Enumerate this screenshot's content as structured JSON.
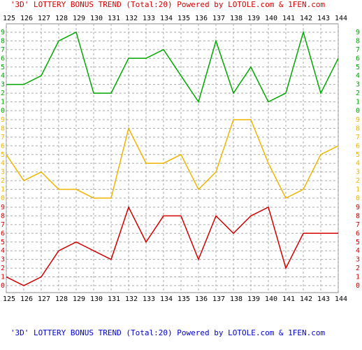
{
  "chart_data": {
    "type": "line",
    "title": "'3D' LOTTERY BONUS TREND (Total:20)  Powered by LOTOLE.com & 1FEN.com",
    "categories": [
      "125",
      "126",
      "127",
      "128",
      "129",
      "130",
      "131",
      "132",
      "133",
      "134",
      "135",
      "136",
      "137",
      "138",
      "139",
      "140",
      "141",
      "142",
      "143",
      "144"
    ],
    "ylim": [
      0,
      9
    ],
    "yticks": [
      0,
      1,
      2,
      3,
      4,
      5,
      6,
      7,
      8,
      9
    ],
    "grid": true,
    "series": [
      {
        "color": "#00a800",
        "values": [
          3,
          3,
          4,
          8,
          9,
          2,
          2,
          6,
          6,
          7,
          4,
          1,
          8,
          2,
          5,
          1,
          2,
          9,
          2,
          6
        ]
      },
      {
        "color": "#f0b400",
        "values": [
          5,
          2,
          3,
          1,
          1,
          0,
          0,
          8,
          4,
          4,
          5,
          1,
          3,
          9,
          9,
          4,
          0,
          1,
          5,
          6
        ]
      },
      {
        "color": "#d40000",
        "values": [
          1,
          0,
          1,
          4,
          5,
          4,
          3,
          9,
          5,
          8,
          8,
          3,
          8,
          6,
          8,
          9,
          2,
          6,
          6,
          6
        ]
      }
    ]
  }
}
